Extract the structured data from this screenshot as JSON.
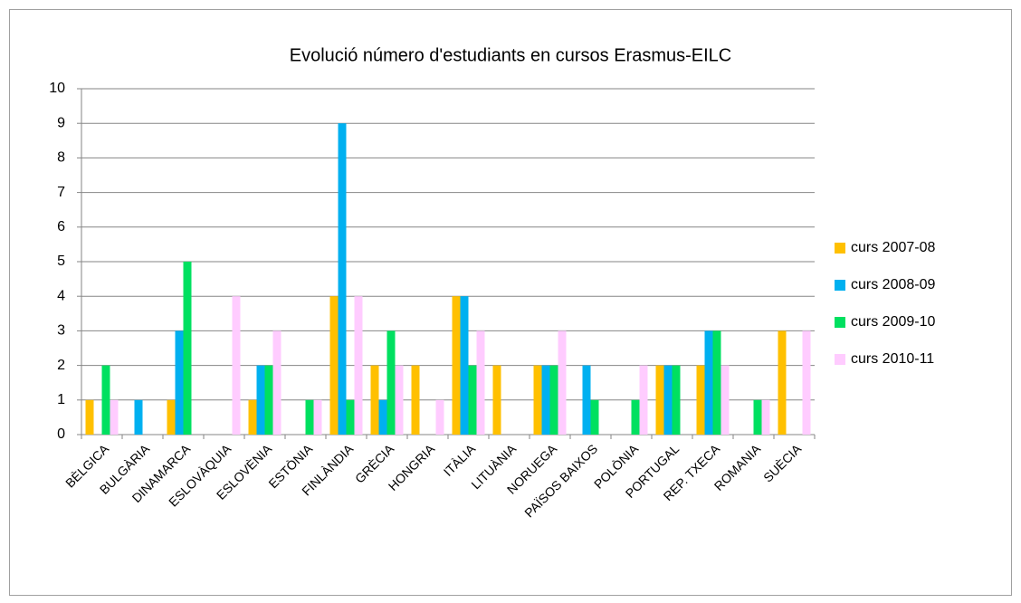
{
  "chart_data": {
    "type": "bar",
    "title": "Evolució número d'estudiants en cursos Erasmus-EILC",
    "categories": [
      "BÈLGICA",
      "BULGÀRIA",
      "DINAMARCA",
      "ESLOVÀQUIA",
      "ESLOVÈNIA",
      "ESTÒNIA",
      "FINLÀNDIA",
      "GRÈCIA",
      "HONGRIA",
      "ITÀLIA",
      "LITUÀNIA",
      "NORUEGA",
      "PAÏSOS BAIXOS",
      "POLÒNIA",
      "PORTUGAL",
      "REP. TXECA",
      "ROMANIA",
      "SUÈCIA"
    ],
    "series": [
      {
        "name": "curs 2007-08",
        "color": "#ffc000",
        "values": [
          1,
          0,
          1,
          0,
          1,
          0,
          4,
          2,
          2,
          4,
          2,
          2,
          0,
          0,
          2,
          2,
          0,
          3
        ]
      },
      {
        "name": "curs 2008-09",
        "color": "#00b0f0",
        "values": [
          0,
          1,
          3,
          0,
          2,
          0,
          9,
          1,
          0,
          4,
          0,
          2,
          2,
          0,
          2,
          3,
          0,
          0
        ]
      },
      {
        "name": "curs 2009-10",
        "color": "#00e060",
        "values": [
          2,
          0,
          5,
          0,
          2,
          1,
          1,
          3,
          0,
          2,
          0,
          2,
          1,
          1,
          2,
          3,
          1,
          0
        ]
      },
      {
        "name": "curs 2010-11",
        "color": "#ffccff",
        "values": [
          1,
          0,
          0,
          4,
          3,
          1,
          4,
          2,
          1,
          3,
          0,
          3,
          0,
          2,
          0,
          2,
          1,
          3
        ]
      }
    ],
    "ylim": [
      0,
      10
    ],
    "yticks": [
      0,
      1,
      2,
      3,
      4,
      5,
      6,
      7,
      8,
      9,
      10
    ],
    "grid": true,
    "legend": "right"
  }
}
